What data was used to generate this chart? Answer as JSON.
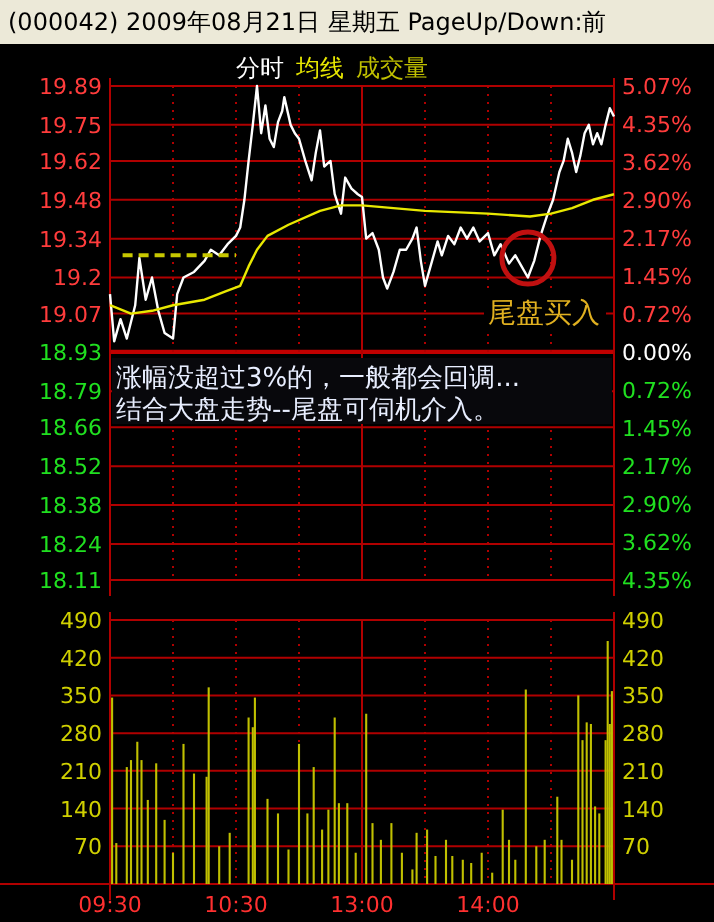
{
  "chart_data": [
    {
      "type": "line",
      "title": "(000042) 2009年08月21日 星期五 PageUp/Down:前",
      "legend": "top left",
      "grid": true,
      "tick_labels": "y",
      "annotations": [
        "尾盘买入",
        "涨幅没超过3%的，一般都会回调...",
        "结合大盘走势--尾盘可伺机介入。"
      ],
      "categories": [
        null,
        null,
        null,
        null,
        null,
        null,
        null,
        null,
        null,
        null,
        null,
        null,
        null,
        null,
        null,
        null,
        null,
        null,
        null,
        null,
        null,
        null,
        null,
        null,
        null,
        null,
        null,
        null,
        null,
        null,
        null,
        null,
        null,
        null,
        null,
        null,
        null,
        null,
        null,
        null,
        null,
        null,
        null,
        null,
        null,
        null,
        null,
        null,
        null,
        null,
        null,
        null,
        null,
        null,
        null,
        null,
        null,
        null,
        null,
        null,
        null,
        null,
        null,
        null,
        null,
        null,
        null,
        null,
        null,
        null,
        null,
        null,
        null,
        null,
        null,
        null,
        null,
        null,
        null,
        null,
        null,
        null,
        null,
        null,
        null,
        null,
        null,
        null,
        null,
        null,
        null,
        null,
        null,
        null,
        null,
        null,
        null,
        null,
        null,
        null,
        null,
        null,
        null,
        null,
        null,
        null,
        null,
        null,
        null,
        null,
        null,
        null,
        null,
        null,
        null,
        null,
        null,
        null,
        null,
        null,
        null,
        null,
        null,
        null,
        null,
        null,
        null,
        null,
        null,
        null,
        null,
        null,
        null,
        null,
        null,
        null,
        null,
        null,
        null,
        null,
        null,
        null,
        null,
        null,
        null,
        null,
        null,
        null,
        null,
        null,
        null,
        null,
        null,
        null,
        null,
        null,
        null,
        null,
        null,
        null,
        null,
        null,
        null,
        null,
        null,
        null,
        null,
        null,
        null,
        null,
        null,
        null,
        null,
        null,
        null,
        null,
        null,
        null,
        null,
        null,
        null,
        null,
        null,
        null,
        null,
        null,
        null,
        null,
        null,
        null,
        null,
        null,
        null,
        null,
        null,
        null,
        null,
        null,
        null,
        null,
        null,
        null,
        null,
        null,
        null,
        null,
        null,
        null,
        null,
        null,
        null,
        null,
        null,
        null,
        null,
        null,
        null,
        null,
        null,
        null,
        null,
        null,
        null,
        null,
        null,
        null,
        null,
        null,
        null,
        null,
        null,
        null,
        null,
        null,
        null,
        null,
        null,
        null,
        null,
        null,
        null
      ],
      "ylim": [
        18.11,
        19.89
      ],
      "yticks": [
        18.11,
        18.24,
        18.38,
        18.52,
        18.66,
        18.79,
        18.93,
        19.07,
        19.2,
        19.34,
        19.48,
        19.62,
        19.75,
        19.89
      ],
      "ref_lines": [
        {
          "axis": "y2",
          "value": 0,
          "color": "#c00000"
        }
      ],
      "y2lim": [
        -4.35,
        5.07
      ],
      "y2ticks": [
        {
          "value": -4.35,
          "label": "4.35%"
        },
        {
          "value": -3.62,
          "label": "3.62%"
        },
        {
          "value": -2.9,
          "label": "2.90%"
        },
        {
          "value": -2.17,
          "label": "2.17%"
        },
        {
          "value": -1.45,
          "label": "1.45%"
        },
        {
          "value": -0.72,
          "label": "0.72%"
        },
        {
          "value": 0,
          "label": "0.00%"
        },
        {
          "value": 0.72,
          "label": "0.72%"
        },
        {
          "value": 1.45,
          "label": "1.45%"
        },
        {
          "value": 2.17,
          "label": "2.17%"
        },
        {
          "value": 2.9,
          "label": "2.90%"
        },
        {
          "value": 3.62,
          "label": "3.62%"
        },
        {
          "value": 4.35,
          "label": "4.35%"
        },
        {
          "value": 5.07,
          "label": "5.07%"
        }
      ],
      "series": [
        {
          "name": "分时",
          "color": "#ffffff",
          "values": [
            19.14,
            null,
            18.97,
            null,
            null,
            19.05,
            null,
            null,
            18.98,
            null,
            null,
            null,
            19.1,
            null,
            19.27,
            null,
            null,
            19.12,
            null,
            null,
            19.2,
            null,
            null,
            19.08,
            null,
            null,
            19.0,
            null,
            null,
            null,
            18.98,
            null,
            19.14,
            null,
            null,
            19.2,
            null,
            null,
            null,
            null,
            19.22,
            null,
            null,
            null,
            null,
            19.26,
            null,
            null,
            19.3,
            null,
            null,
            null,
            19.28,
            null,
            null,
            null,
            19.32,
            null,
            null,
            null,
            19.35,
            null,
            19.38,
            null,
            19.48,
            null,
            19.62,
            null,
            19.75,
            null,
            19.89,
            null,
            19.72,
            null,
            19.82,
            null,
            19.7,
            null,
            19.67,
            null,
            19.76,
            null,
            19.8,
            19.85,
            null,
            null,
            19.75,
            null,
            19.72,
            null,
            19.7,
            null,
            null,
            19.62,
            null,
            null,
            19.55,
            null,
            19.65,
            null,
            19.73,
            null,
            19.6,
            null,
            null,
            19.62,
            null,
            19.5,
            null,
            null,
            19.43,
            null,
            19.56,
            null,
            null,
            19.52,
            null,
            null,
            19.5,
            null,
            19.49,
            null,
            19.34,
            null,
            null,
            19.36,
            null,
            null,
            19.3,
            null,
            19.2,
            null,
            19.16,
            null,
            null,
            19.22,
            null,
            null,
            19.3,
            null,
            null,
            19.3,
            null,
            null,
            19.34,
            null,
            19.38,
            null,
            19.26,
            null,
            19.17,
            null,
            null,
            19.25,
            null,
            null,
            19.33,
            null,
            19.28,
            null,
            null,
            19.35,
            null,
            null,
            19.32,
            null,
            null,
            19.38,
            null,
            null,
            19.34,
            null,
            null,
            19.38,
            null,
            null,
            19.33,
            null,
            null,
            null,
            19.36,
            null,
            null,
            19.28,
            null,
            null,
            19.32,
            null,
            null,
            null,
            19.25,
            null,
            null,
            19.28,
            null,
            null,
            19.24,
            null,
            null,
            19.2,
            null,
            null,
            19.26,
            null,
            null,
            19.35,
            null,
            null,
            19.42,
            null,
            null,
            19.48,
            null,
            null,
            19.58,
            null,
            19.62,
            null,
            19.7,
            null,
            19.65,
            null,
            19.58,
            null,
            19.64,
            null,
            19.72,
            null,
            19.75,
            null,
            19.68,
            null,
            19.72,
            null,
            19.68,
            null,
            19.75,
            null,
            19.81,
            null,
            19.78
          ]
        },
        {
          "name": "均线",
          "color": "#e8e800",
          "values": [
            19.1,
            null,
            null,
            null,
            null,
            null,
            null,
            null,
            null,
            null,
            19.07,
            null,
            null,
            null,
            null,
            null,
            null,
            null,
            null,
            null,
            19.08,
            null,
            null,
            null,
            null,
            null,
            null,
            null,
            null,
            null,
            19.1,
            null,
            null,
            null,
            null,
            null,
            null,
            null,
            null,
            null,
            null,
            null,
            null,
            null,
            null,
            19.12,
            null,
            null,
            null,
            null,
            null,
            null,
            null,
            null,
            null,
            19.15,
            null,
            null,
            null,
            null,
            null,
            null,
            19.17,
            null,
            null,
            null,
            19.24,
            null,
            null,
            null,
            19.3,
            null,
            null,
            null,
            null,
            19.35,
            null,
            null,
            null,
            null,
            null,
            null,
            null,
            null,
            null,
            19.39,
            null,
            null,
            null,
            null,
            null,
            null,
            null,
            null,
            null,
            null,
            null,
            null,
            null,
            null,
            19.44,
            null,
            null,
            null,
            null,
            null,
            null,
            null,
            null,
            null,
            19.46,
            null,
            null,
            null,
            null,
            null,
            null,
            null,
            null,
            null,
            19.46,
            null,
            null,
            null,
            null,
            null,
            null,
            null,
            null,
            null,
            null,
            null,
            null,
            null,
            null,
            null,
            null,
            null,
            null,
            null,
            null,
            null,
            null,
            null,
            null,
            null,
            null,
            null,
            null,
            null,
            19.44,
            null,
            null,
            null,
            null,
            null,
            null,
            null,
            null,
            null,
            null,
            null,
            null,
            null,
            null,
            null,
            null,
            null,
            null,
            null,
            null,
            null,
            null,
            null,
            null,
            null,
            null,
            null,
            null,
            null,
            19.43,
            null,
            null,
            null,
            null,
            null,
            null,
            null,
            null,
            null,
            null,
            null,
            null,
            null,
            null,
            null,
            null,
            null,
            null,
            null,
            19.42,
            null,
            null,
            null,
            null,
            null,
            null,
            null,
            null,
            null,
            19.43,
            null,
            null,
            null,
            null,
            null,
            null,
            null,
            null,
            null,
            19.45,
            null,
            null,
            null,
            null,
            null,
            null,
            null,
            null,
            null,
            19.48,
            null,
            null,
            null,
            null,
            null,
            null,
            null,
            null,
            null,
            19.5
          ]
        },
        {
          "color": "#c8c800",
          "line_style": "dashed",
          "values": [
            null,
            null,
            null,
            null,
            null,
            null,
            19.28,
            null,
            null,
            null,
            null,
            null,
            null,
            null,
            null,
            null,
            null,
            null,
            null,
            null,
            null,
            null,
            null,
            null,
            null,
            null,
            null,
            null,
            null,
            null,
            null,
            null,
            null,
            null,
            null,
            null,
            null,
            null,
            null,
            null,
            null,
            null,
            null,
            null,
            null,
            null,
            null,
            null,
            null,
            null,
            null,
            null,
            null,
            null,
            null,
            null,
            null,
            null,
            null,
            null,
            19.28,
            null,
            null,
            null,
            null,
            null,
            null,
            null,
            null,
            null,
            null,
            null,
            null,
            null,
            null,
            null,
            null,
            null,
            null,
            null,
            null,
            null,
            null,
            null,
            null,
            null,
            null,
            null,
            null,
            null,
            null,
            null,
            null,
            null,
            null,
            null,
            null,
            null,
            null,
            null,
            null,
            null,
            null,
            null,
            null,
            null,
            null,
            null,
            null,
            null,
            null,
            null,
            null,
            null,
            null,
            null,
            null,
            null,
            null,
            null,
            null,
            null,
            null,
            null,
            null,
            null,
            null,
            null,
            null,
            null,
            null,
            null,
            null,
            null,
            null,
            null,
            null,
            null,
            null,
            null,
            null,
            null,
            null,
            null,
            null,
            null,
            null,
            null,
            null,
            null,
            null,
            null,
            null,
            null,
            null,
            null,
            null,
            null,
            null,
            null,
            null,
            null,
            null,
            null,
            null,
            null,
            null,
            null,
            null,
            null,
            null,
            null,
            null,
            null,
            null,
            null,
            null,
            null,
            null,
            null,
            null,
            null,
            null,
            null,
            null,
            null,
            null,
            null,
            null,
            null,
            null,
            null,
            null,
            null,
            null,
            null,
            null,
            null,
            null,
            null,
            null,
            null,
            null,
            null,
            null,
            null,
            null,
            null,
            null,
            null,
            null,
            null,
            null,
            null,
            null,
            null,
            null,
            null,
            null,
            null,
            null,
            null,
            null,
            null,
            null,
            null,
            null,
            null,
            null,
            null,
            null,
            null,
            null,
            null,
            null,
            null,
            null,
            null,
            null,
            null,
            null
          ]
        }
      ]
    },
    {
      "type": "bar",
      "legend": "top",
      "grid": true,
      "categories": [
        "09:30",
        null,
        null,
        null,
        null,
        null,
        null,
        null,
        null,
        null,
        null,
        null,
        null,
        null,
        null,
        null,
        null,
        null,
        null,
        null,
        null,
        null,
        null,
        null,
        null,
        null,
        null,
        null,
        null,
        null,
        null,
        null,
        null,
        null,
        null,
        null,
        null,
        null,
        null,
        null,
        null,
        null,
        null,
        null,
        null,
        null,
        null,
        null,
        null,
        null,
        null,
        null,
        null,
        null,
        null,
        null,
        null,
        null,
        null,
        null,
        "10:30",
        null,
        null,
        null,
        null,
        null,
        null,
        null,
        null,
        null,
        null,
        null,
        null,
        null,
        null,
        null,
        null,
        null,
        null,
        null,
        null,
        null,
        null,
        null,
        null,
        null,
        null,
        null,
        null,
        null,
        null,
        null,
        null,
        null,
        null,
        null,
        null,
        null,
        null,
        null,
        null,
        null,
        null,
        null,
        null,
        null,
        null,
        null,
        null,
        null,
        null,
        null,
        null,
        null,
        null,
        null,
        null,
        null,
        null,
        null,
        "13:00",
        null,
        null,
        null,
        null,
        null,
        null,
        null,
        null,
        null,
        null,
        null,
        null,
        null,
        null,
        null,
        null,
        null,
        null,
        null,
        null,
        null,
        null,
        null,
        null,
        null,
        null,
        null,
        null,
        null,
        null,
        null,
        null,
        null,
        null,
        null,
        null,
        null,
        null,
        null,
        null,
        null,
        null,
        null,
        null,
        null,
        null,
        null,
        null,
        null,
        null,
        null,
        null,
        null,
        null,
        null,
        null,
        null,
        null,
        null,
        "14:00",
        null,
        null,
        null,
        null,
        null,
        null,
        null,
        null,
        null,
        null,
        null,
        null,
        null,
        null,
        null,
        null,
        null,
        null,
        null,
        null,
        null,
        null,
        null,
        null,
        null,
        null,
        null,
        null,
        null,
        null,
        null,
        null,
        null,
        null,
        null,
        null,
        null,
        null,
        null,
        null,
        null,
        null,
        null,
        null,
        null,
        null,
        null,
        null,
        null,
        null,
        null,
        null,
        null,
        null,
        null,
        null,
        null,
        null,
        null,
        null
      ],
      "ylim": [
        0,
        490
      ],
      "yticks": [
        70,
        140,
        210,
        280,
        350,
        420,
        490
      ],
      "y2lim": [
        0,
        490
      ],
      "y2ticks": [
        70,
        140,
        210,
        280,
        350,
        420,
        490
      ],
      "series": [
        {
          "name": "成交量",
          "color": "#c0c000",
          "values": [
            null,
            346,
            null,
            76,
            null,
            null,
            null,
            null,
            217,
            null,
            230,
            null,
            null,
            264,
            null,
            230,
            null,
            null,
            156,
            null,
            null,
            null,
            224,
            null,
            null,
            null,
            119,
            null,
            null,
            null,
            58,
            null,
            null,
            null,
            null,
            260,
            null,
            null,
            null,
            null,
            205,
            null,
            null,
            null,
            null,
            null,
            199,
            365,
            null,
            null,
            null,
            null,
            70,
            null,
            null,
            null,
            null,
            95,
            null,
            null,
            null,
            null,
            null,
            null,
            null,
            null,
            309,
            null,
            291,
            346,
            null,
            null,
            null,
            null,
            null,
            158,
            null,
            null,
            null,
            null,
            131,
            null,
            null,
            null,
            null,
            64,
            null,
            null,
            null,
            null,
            260,
            null,
            null,
            null,
            131,
            null,
            null,
            217,
            null,
            null,
            null,
            101,
            null,
            null,
            138,
            null,
            null,
            309,
            null,
            150,
            null,
            null,
            null,
            150,
            null,
            null,
            null,
            58,
            null,
            null,
            null,
            null,
            316,
            null,
            null,
            113,
            null,
            null,
            null,
            82,
            null,
            null,
            null,
            null,
            113,
            null,
            null,
            null,
            null,
            58,
            null,
            null,
            null,
            null,
            27,
            null,
            95,
            null,
            null,
            null,
            null,
            101,
            null,
            null,
            null,
            52,
            null,
            null,
            null,
            null,
            82,
            null,
            null,
            52,
            null,
            null,
            null,
            null,
            45,
            null,
            null,
            null,
            39,
            null,
            null,
            null,
            null,
            58,
            null,
            null,
            null,
            null,
            21,
            null,
            null,
            null,
            null,
            138,
            null,
            null,
            82,
            null,
            null,
            45,
            null,
            null,
            null,
            null,
            361,
            null,
            null,
            null,
            null,
            70,
            null,
            null,
            null,
            82,
            null,
            null,
            null,
            null,
            null,
            162,
            null,
            82,
            null,
            null,
            null,
            null,
            45,
            null,
            null,
            350,
            null,
            267,
            null,
            300,
            null,
            297,
            null,
            144,
            null,
            131,
            null,
            null,
            267,
            451,
            297,
            358,
            null
          ]
        }
      ]
    }
  ]
}
